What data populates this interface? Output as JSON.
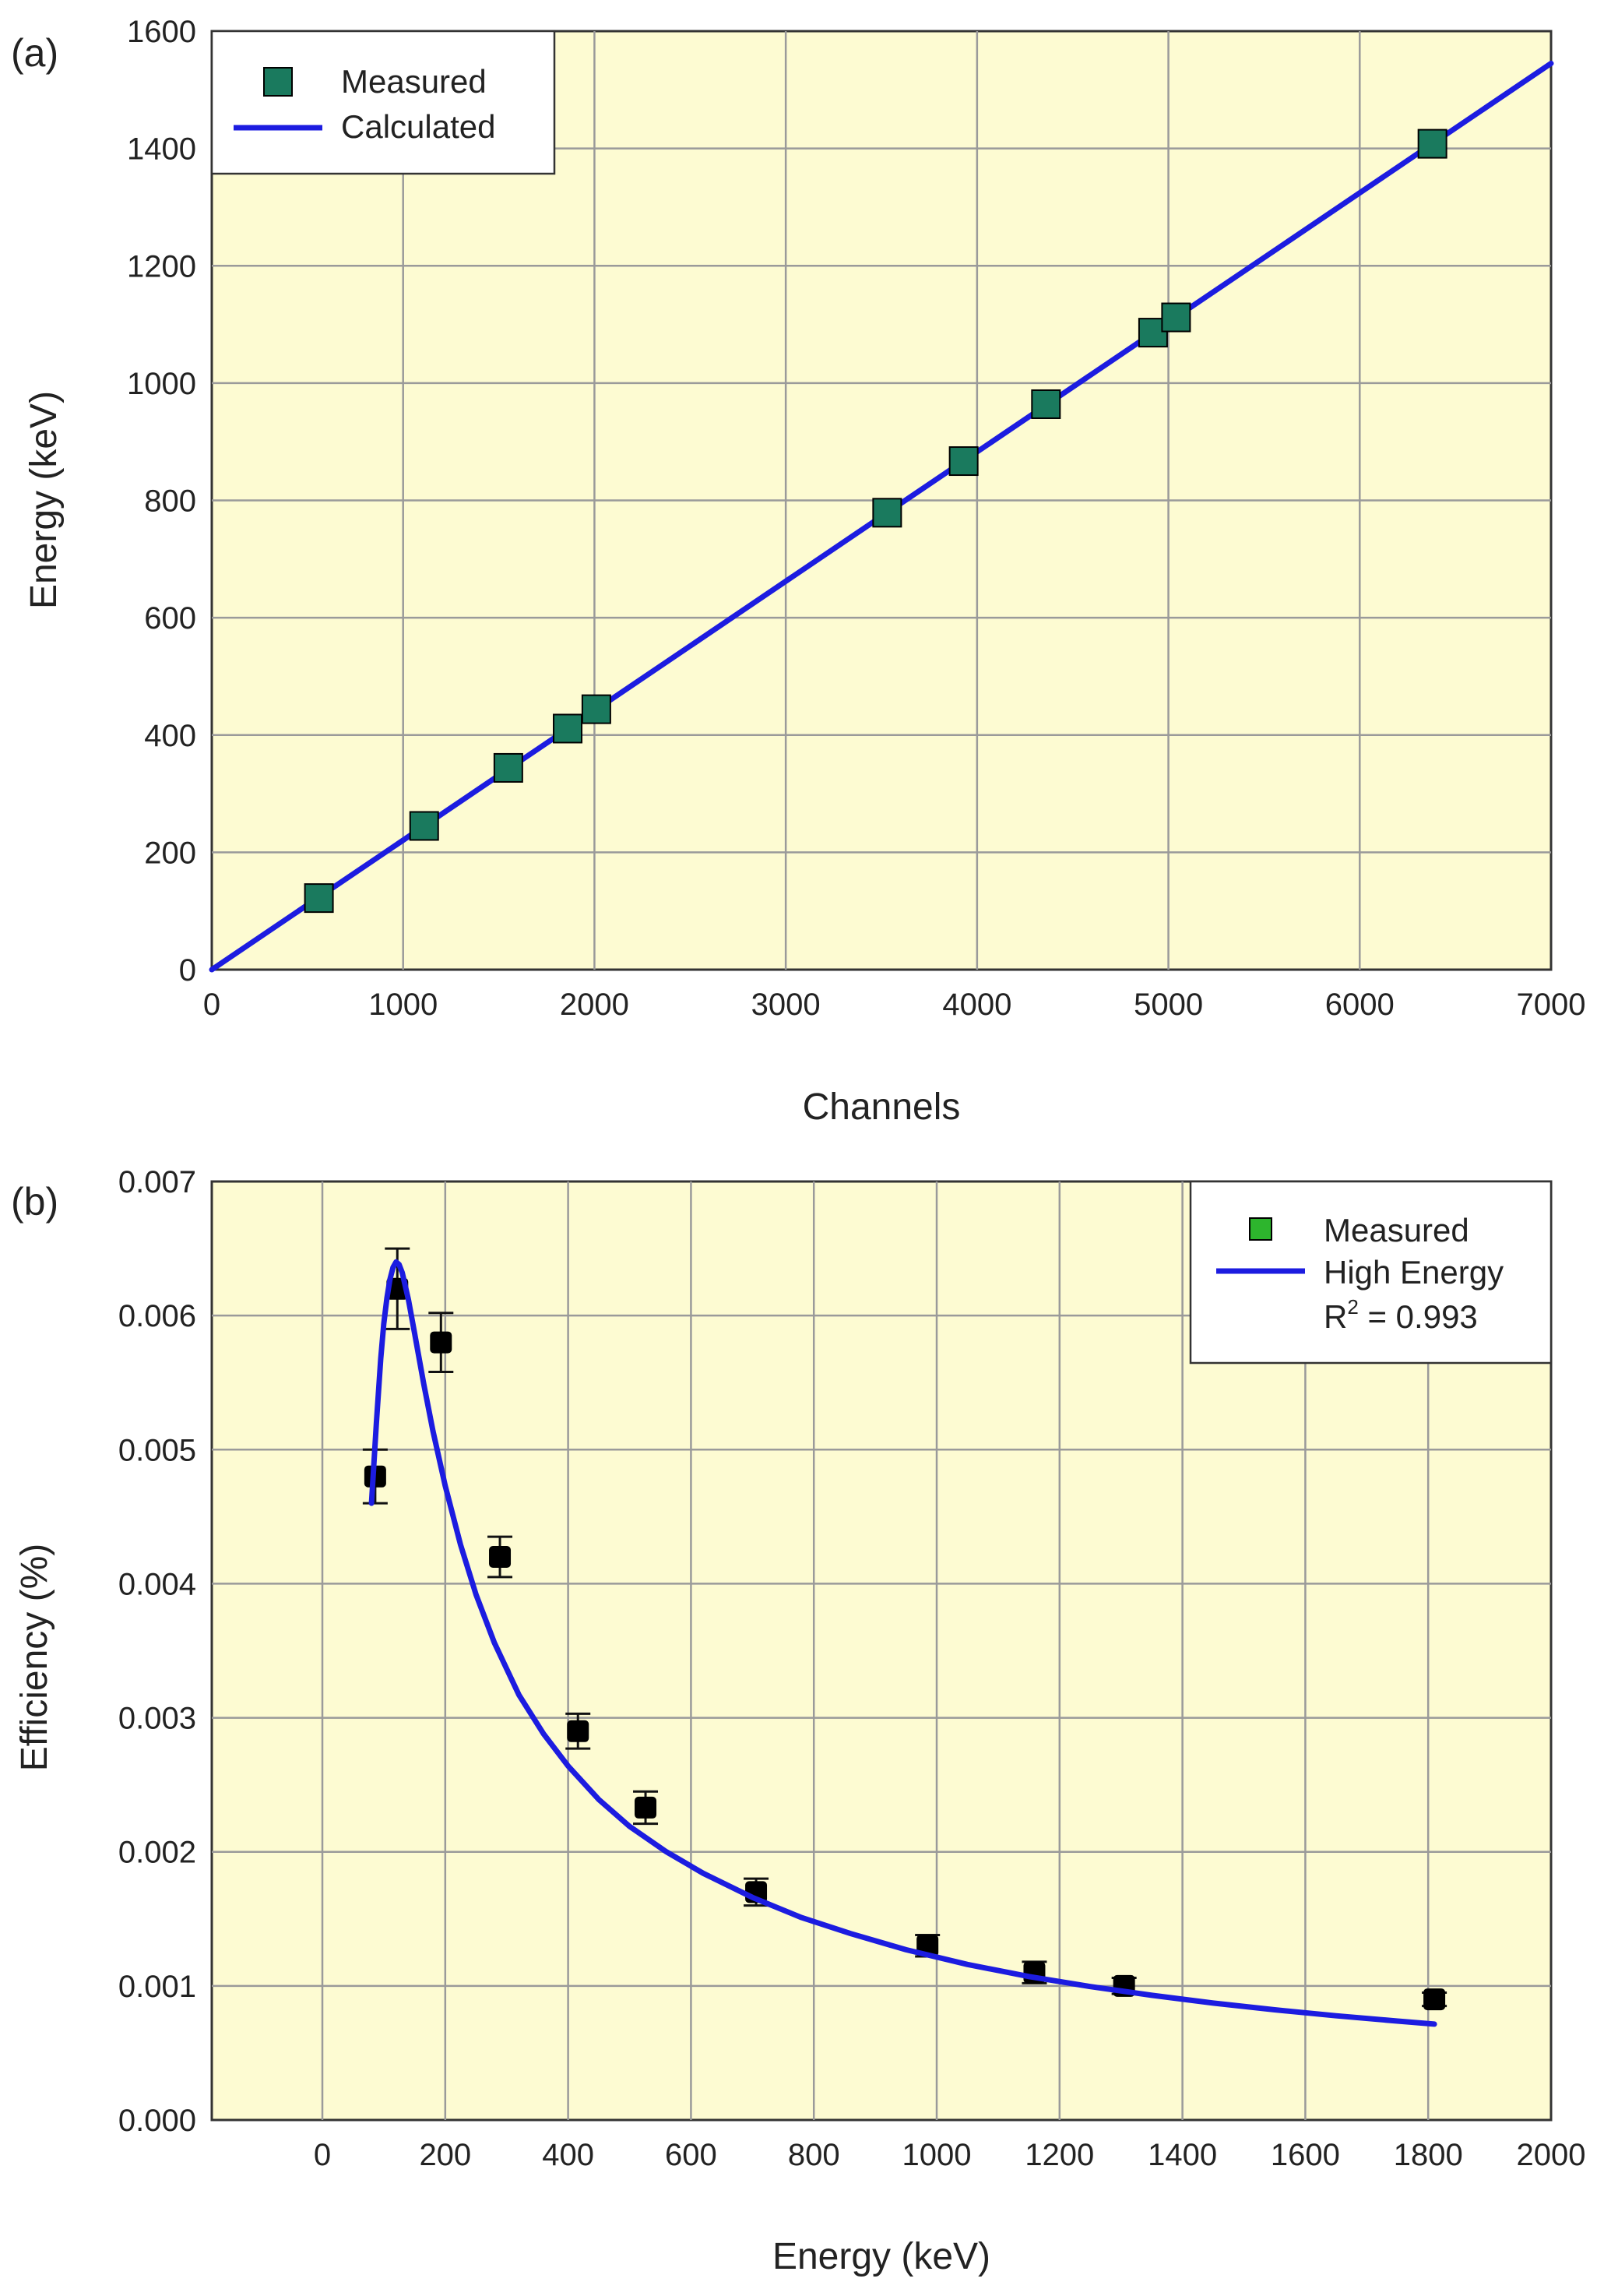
{
  "chart_data": [
    {
      "type": "line",
      "panel_label": "(a)",
      "xlabel": "Channels",
      "ylabel": "Energy (keV)",
      "xlim": [
        0,
        7000
      ],
      "ylim": [
        0,
        1600
      ],
      "xticks": [
        0,
        1000,
        2000,
        3000,
        4000,
        5000,
        6000,
        7000
      ],
      "yticks": [
        0,
        200,
        400,
        600,
        800,
        1000,
        1200,
        1400,
        1600
      ],
      "grid": true,
      "legend_position": "top-left",
      "series": [
        {
          "name": "Measured",
          "kind": "scatter",
          "marker": "square",
          "color": "#1a7a5e",
          "x": [
            560,
            1110,
            1550,
            1860,
            2010,
            3530,
            3930,
            4360,
            4920,
            5040,
            6380
          ],
          "y": [
            122,
            245,
            344,
            411,
            444,
            779,
            867,
            964,
            1086,
            1112,
            1408
          ]
        },
        {
          "name": "Calculated",
          "kind": "line",
          "color": "#1c1ce0",
          "x": [
            0,
            7000
          ],
          "y": [
            0,
            1545
          ]
        }
      ]
    },
    {
      "type": "scatter",
      "panel_label": "(b)",
      "xlabel": "Energy (keV)",
      "ylabel": "Efficiency (%)",
      "xlim": [
        -180,
        2000
      ],
      "ylim": [
        0,
        0.007
      ],
      "xticks": [
        0,
        200,
        400,
        600,
        800,
        1000,
        1200,
        1400,
        1600,
        1800,
        2000
      ],
      "yticks": [
        "0.000",
        "0.001",
        "0.002",
        "0.003",
        "0.004",
        "0.005",
        "0.006",
        "0.007"
      ],
      "grid": true,
      "legend_position": "top-right",
      "series": [
        {
          "name": "Measured",
          "kind": "scatter",
          "marker": "square",
          "color": "#000000",
          "legend_color": "#2db52d",
          "x": [
            86,
            122,
            193,
            289,
            416,
            526,
            706,
            985,
            1159,
            1305,
            1810
          ],
          "y": [
            0.0048,
            0.0062,
            0.0058,
            0.0042,
            0.0029,
            0.00233,
            0.0017,
            0.0013,
            0.0011,
            0.001,
            0.0009
          ],
          "yerr": [
            0.0002,
            0.0003,
            0.00022,
            0.00015,
            0.00013,
            0.00012,
            0.0001,
            8e-05,
            8e-05,
            6e-05,
            5e-05
          ]
        },
        {
          "name": "High Energy",
          "kind": "line",
          "color": "#1c1ce0",
          "x": [
            80,
            88,
            95,
            100,
            105,
            110,
            115,
            120,
            125,
            130,
            140,
            150,
            165,
            180,
            200,
            225,
            250,
            280,
            320,
            360,
            400,
            450,
            500,
            560,
            620,
            700,
            780,
            860,
            950,
            1050,
            1150,
            1250,
            1350,
            1450,
            1550,
            1650,
            1750,
            1810
          ],
          "y": [
            0.0046,
            0.0052,
            0.00568,
            0.00594,
            0.00613,
            0.00627,
            0.00636,
            0.0064,
            0.00638,
            0.00632,
            0.00612,
            0.00587,
            0.00549,
            0.00514,
            0.00473,
            0.00429,
            0.00392,
            0.00356,
            0.00317,
            0.00288,
            0.00264,
            0.00239,
            0.00219,
            0.002,
            0.00184,
            0.00166,
            0.00151,
            0.00139,
            0.00127,
            0.00116,
            0.00107,
            0.000995,
            0.00093,
            0.000872,
            0.000822,
            0.000777,
            0.000738,
            0.000715
          ]
        }
      ],
      "annotation": {
        "prefix": "R",
        "superscript": "2",
        "suffix": " = 0.993"
      }
    }
  ]
}
